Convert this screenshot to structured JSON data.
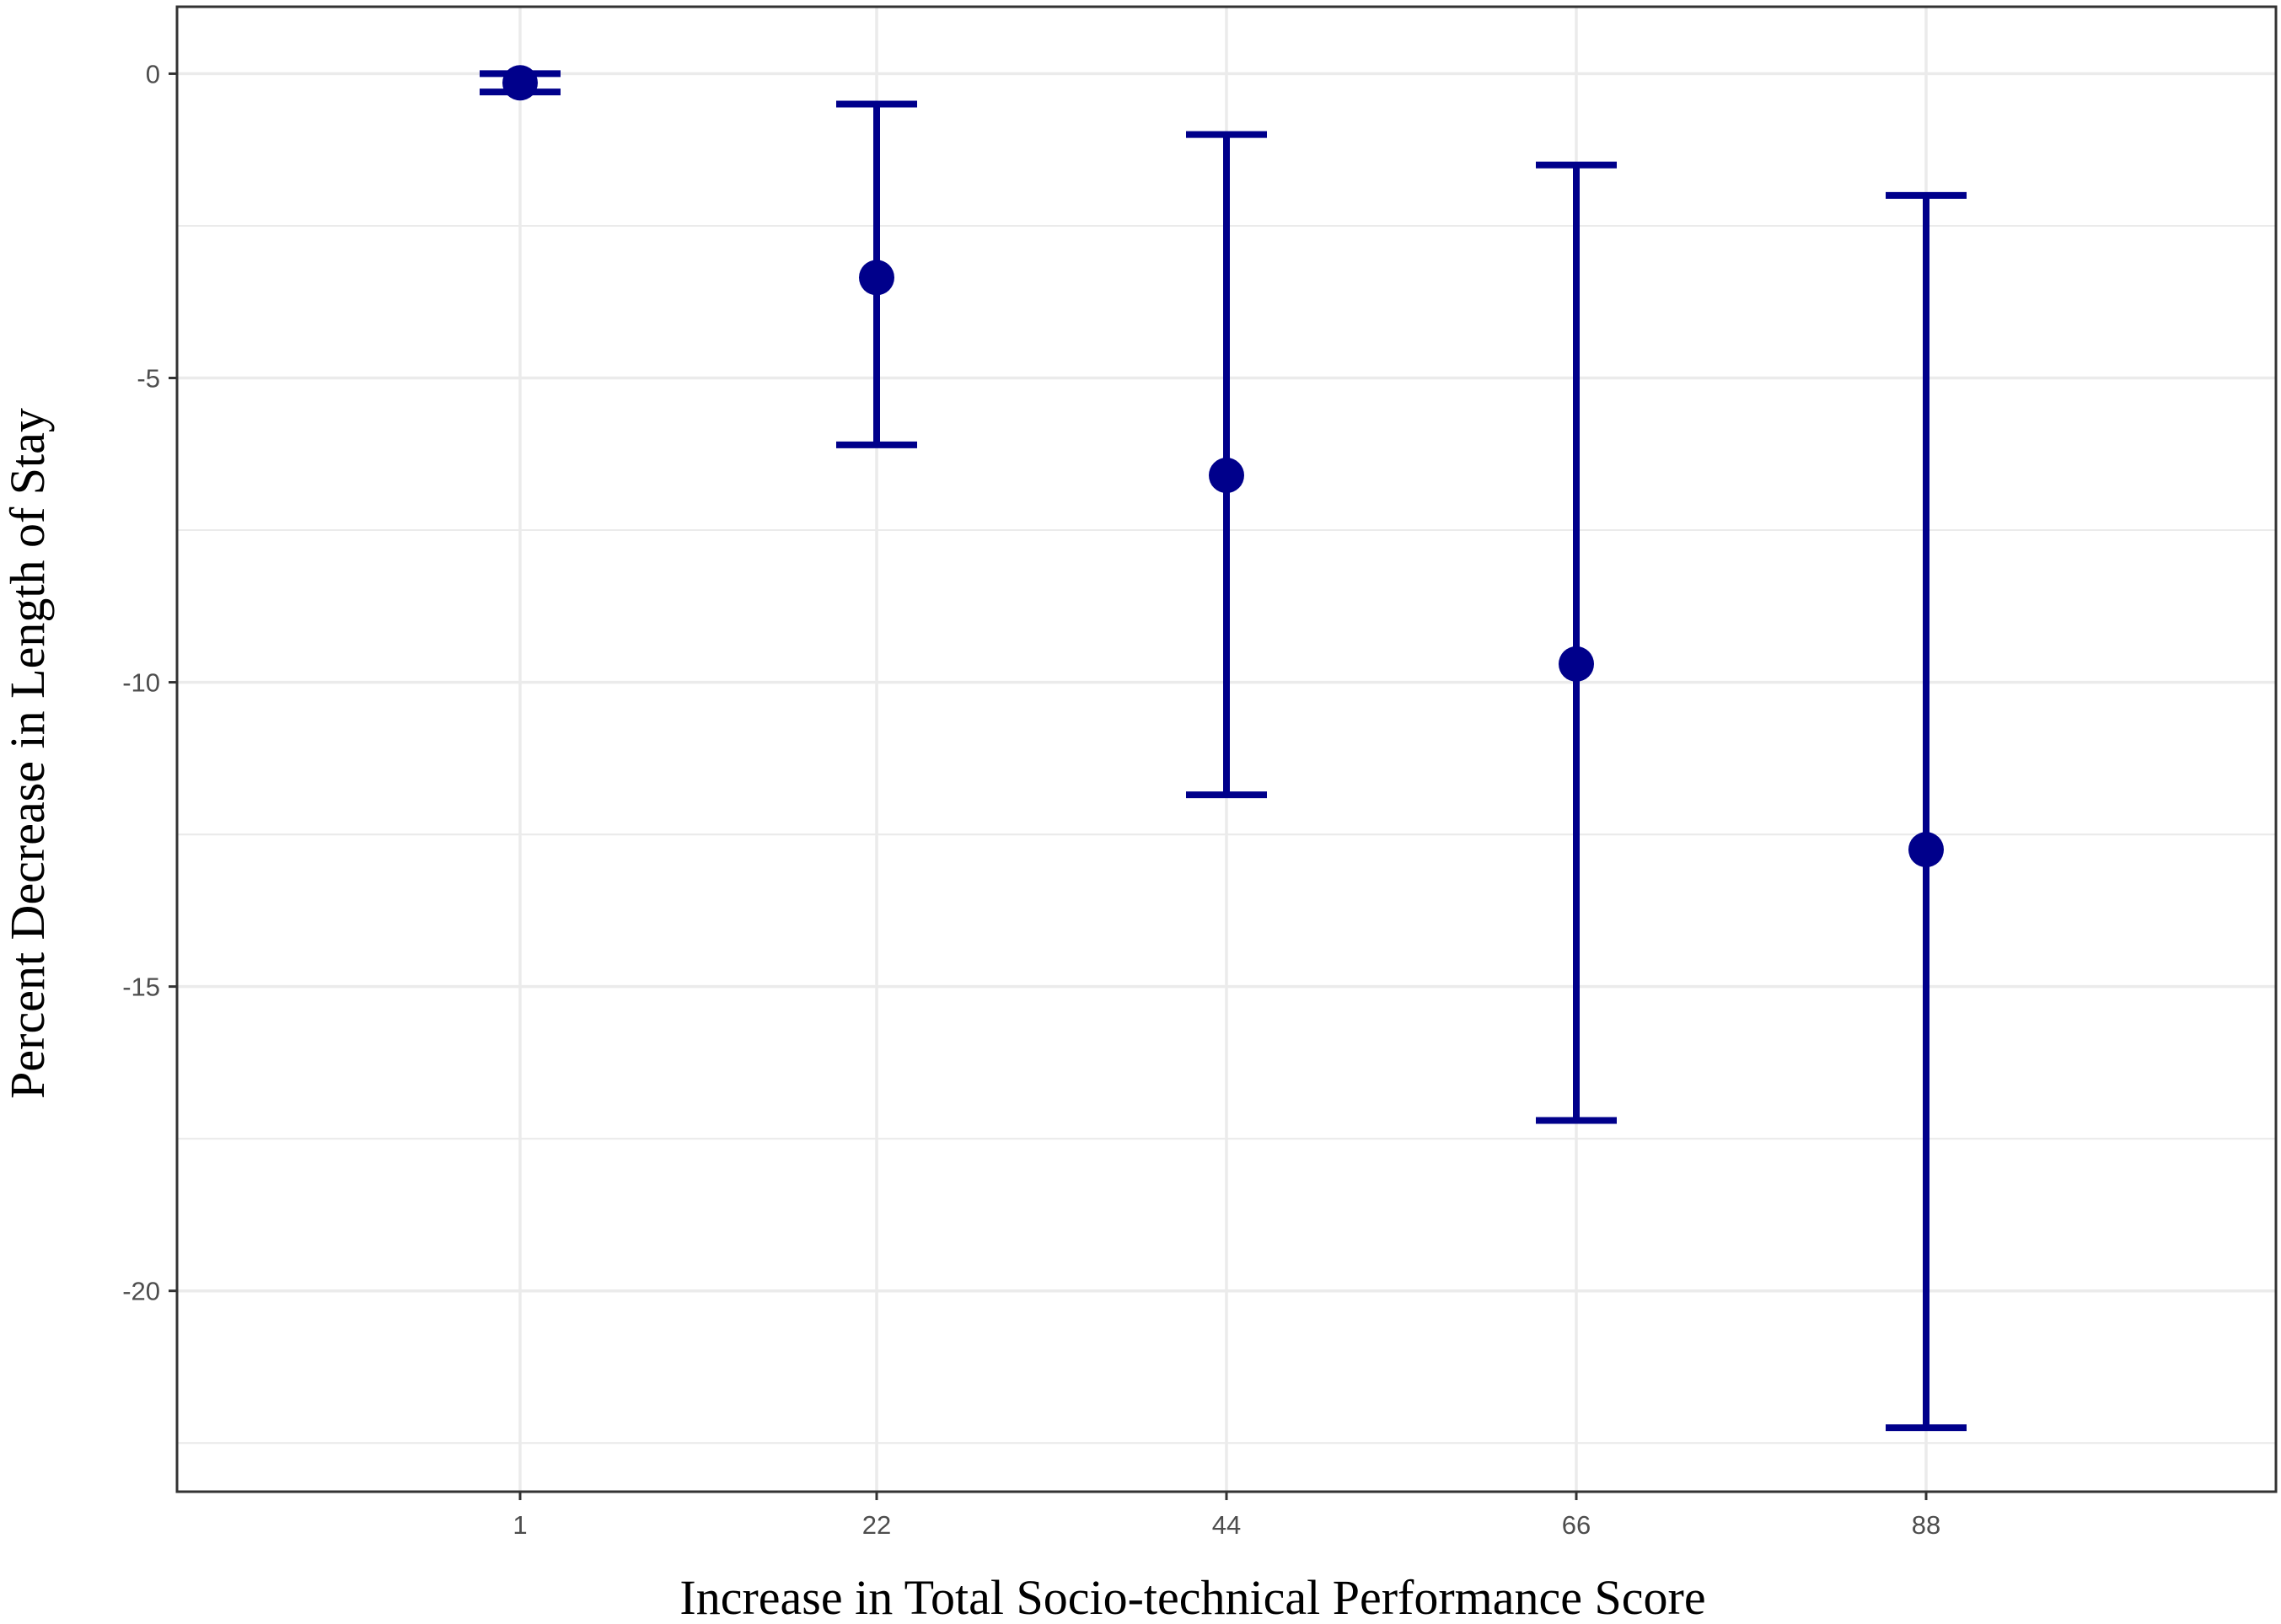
{
  "chart_data": {
    "type": "scatter",
    "subtype": "point-with-error-bars",
    "title": "",
    "xlabel": "Increase in Total Socio-technical Performance Score",
    "ylabel": "Percent Decrease in Length of Stay",
    "categories": [
      "1",
      "22",
      "44",
      "66",
      "88"
    ],
    "series": [
      {
        "values": [
          -0.15,
          -3.35,
          -6.6,
          -9.7,
          -12.75
        ],
        "lower": [
          -0.3,
          -6.1,
          -11.85,
          -17.2,
          -22.25
        ],
        "upper": [
          0.0,
          -0.5,
          -1.0,
          -1.5,
          -2.0
        ]
      }
    ],
    "yticks": [
      0,
      -5,
      -10,
      -15,
      -20
    ],
    "ylim": [
      -23.3,
      1.1
    ],
    "grid": true,
    "legend": "none",
    "colors": {
      "series": "#00008B",
      "grid": "#ebebeb",
      "panel_border": "#333333",
      "tick_text": "#4d4d4d",
      "axis_title": "#000000"
    }
  }
}
